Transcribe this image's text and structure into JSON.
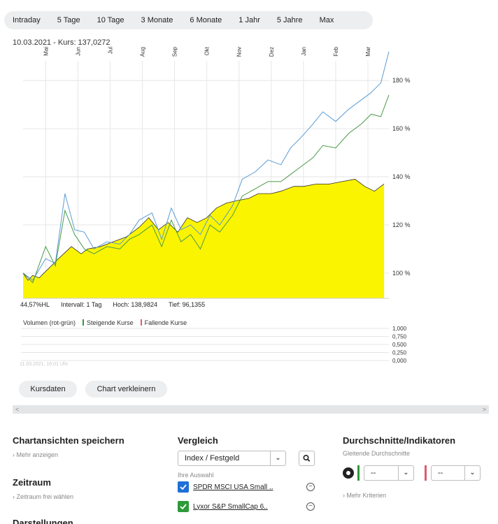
{
  "tabs": [
    "Intraday",
    "5 Tage",
    "10 Tage",
    "3 Monate",
    "6 Monate",
    "1 Jahr",
    "5 Jahre",
    "Max"
  ],
  "kurs_label": "10.03.2021  -  Kurs: 137,0272",
  "stats": {
    "hl": "44,57%HL",
    "intervall": "Intervall: 1 Tag",
    "hoch": "Hoch: 138,9824",
    "tief": "Tief: 96,1355"
  },
  "volume": {
    "legend_label": "Volumen (rot-grün)",
    "steigend": "Steigende Kurse",
    "fallend": "Fallende Kurse",
    "ticks": [
      "1,000",
      "0,750",
      "0,500",
      "0,250",
      "0,000"
    ],
    "date_faint": "11.03.2021, 16:01 Uhr"
  },
  "buttons": {
    "kursdaten": "Kursdaten",
    "verkleinern": "Chart verkleinern"
  },
  "scroll": {
    "left": "<",
    "right": ">"
  },
  "sections": {
    "chartansichten": {
      "title": "Chartansichten speichern",
      "link": "Mehr anzeigen"
    },
    "zeitraum": {
      "title": "Zeitraum",
      "link": "Zeitraum frei wählen"
    },
    "darstellungen": {
      "title": "Darstellungen"
    },
    "vergleich": {
      "title": "Vergleich",
      "select_value": "Index / Festgeld",
      "sub": "Ihre Auswahl",
      "items": [
        "SPDR MSCI USA Small ..",
        "Lyxor S&P SmallCap 6.."
      ]
    },
    "indikatoren": {
      "title": "Durchschnitte/Indikatoren",
      "sub": "Gleitende Durchschnitte",
      "select1": "--",
      "select2": "--",
      "link": "Mehr Kriterien"
    }
  },
  "colors": {
    "area_fill": "#fbf400",
    "area_line": "#2e2e2e",
    "series_blue": "#5b9bd5",
    "series_green": "#4a9a4a",
    "check_blue": "#1f6fd6",
    "check_green": "#2e9a39",
    "steigend_mark": "#2e9a39",
    "fallend_mark": "#e05a6e"
  },
  "chart_data": {
    "type": "area",
    "x_tick_labels": [
      "Mai",
      "Jun",
      "Jul",
      "Aug",
      "Sep",
      "Okt",
      "Nov",
      "Dez",
      "Jan",
      "Feb",
      "Mar"
    ],
    "y_tick_labels": [
      "100 %",
      "120 %",
      "140 %",
      "160 %",
      "180 %"
    ],
    "y_ticks": [
      100,
      120,
      140,
      160,
      180
    ],
    "ylim": [
      89.5,
      194
    ],
    "xlim": [
      0,
      11.35
    ],
    "series": [
      {
        "kind": "area",
        "x": [
          0,
          0.15,
          0.3,
          0.5,
          0.8,
          1.1,
          1.5,
          1.8,
          2.0,
          2.4,
          2.8,
          3.2,
          3.6,
          3.9,
          4.2,
          4.5,
          4.8,
          5.1,
          5.4,
          5.7,
          6.0,
          6.3,
          6.6,
          7.0,
          7.3,
          7.7,
          8.0,
          8.4,
          8.7,
          9.1,
          9.5,
          9.9,
          10.3,
          10.6,
          10.9,
          11.2
        ],
        "values": [
          100,
          97,
          99,
          98,
          102,
          106,
          111,
          108,
          110,
          111,
          113,
          115,
          119,
          123,
          118,
          121,
          117,
          123,
          121,
          123,
          127,
          129,
          130,
          131,
          133,
          133,
          134,
          136,
          136,
          137,
          137,
          138,
          139,
          136,
          134,
          137
        ]
      },
      {
        "kind": "line",
        "x": [
          0,
          0.3,
          0.7,
          1.0,
          1.3,
          1.6,
          1.9,
          2.2,
          2.6,
          3.0,
          3.3,
          3.6,
          4.0,
          4.3,
          4.6,
          4.9,
          5.2,
          5.5,
          5.8,
          6.1,
          6.5,
          6.8,
          7.2,
          7.6,
          8.0,
          8.3,
          8.6,
          9.0,
          9.3,
          9.7,
          10.1,
          10.5,
          10.8,
          11.1,
          11.35
        ],
        "values": [
          100,
          97,
          106,
          104,
          133,
          118,
          117,
          110,
          113,
          112,
          116,
          122,
          125,
          114,
          127,
          118,
          120,
          116,
          124,
          120,
          128,
          139,
          142,
          147,
          145,
          152,
          156,
          162,
          167,
          163,
          168,
          172,
          175,
          179,
          192
        ]
      },
      {
        "kind": "line",
        "x": [
          0,
          0.3,
          0.7,
          1.0,
          1.3,
          1.6,
          1.9,
          2.2,
          2.6,
          3.0,
          3.3,
          3.6,
          4.0,
          4.3,
          4.6,
          4.9,
          5.2,
          5.5,
          5.8,
          6.1,
          6.5,
          6.8,
          7.2,
          7.6,
          8.0,
          8.3,
          8.6,
          9.0,
          9.3,
          9.7,
          10.1,
          10.5,
          10.8,
          11.1,
          11.35
        ],
        "values": [
          100,
          96,
          111,
          103,
          126,
          116,
          110,
          108,
          111,
          110,
          114,
          116,
          120,
          111,
          122,
          113,
          116,
          110,
          120,
          117,
          124,
          132,
          135,
          138,
          138,
          141,
          144,
          148,
          153,
          152,
          158,
          162,
          166,
          165,
          174
        ]
      }
    ]
  }
}
